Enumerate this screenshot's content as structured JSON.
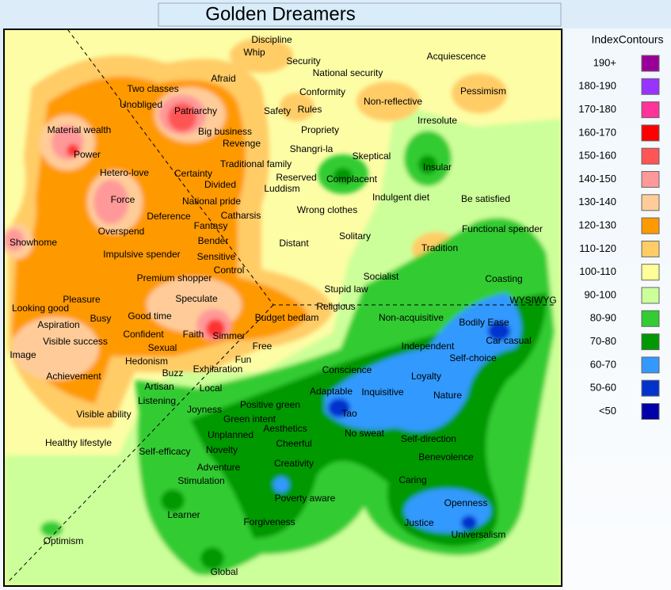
{
  "header": {
    "title": "Golden Dreamers"
  },
  "legend": {
    "title": "IndexContours",
    "items": [
      {
        "label": "190+",
        "color": "#990099"
      },
      {
        "label": "180-190",
        "color": "#9933ff"
      },
      {
        "label": "170-180",
        "color": "#ff3399"
      },
      {
        "label": "160-170",
        "color": "#ff0000"
      },
      {
        "label": "150-160",
        "color": "#ff5555"
      },
      {
        "label": "140-150",
        "color": "#ff9999"
      },
      {
        "label": "130-140",
        "color": "#ffcc99"
      },
      {
        "label": "120-130",
        "color": "#ff9900"
      },
      {
        "label": "110-120",
        "color": "#ffcc66"
      },
      {
        "label": "100-110",
        "color": "#ffff99"
      },
      {
        "label": "90-100",
        "color": "#ccff99"
      },
      {
        "label": "80-90",
        "color": "#33cc33"
      },
      {
        "label": "70-80",
        "color": "#009900"
      },
      {
        "label": "60-70",
        "color": "#3399ff"
      },
      {
        "label": "50-60",
        "color": "#0033cc"
      },
      {
        "label": "<50",
        "color": "#0000aa"
      }
    ]
  },
  "words": [
    "Discipline",
    "Whip",
    "Security",
    "National security",
    "Acquiescence",
    "Conformity",
    "Non-reflective",
    "Pessimism",
    "Afraid",
    "Two classes",
    "Unobliged",
    "Patriarchy",
    "Safety",
    "Rules",
    "Irresolute",
    "Material wealth",
    "Big business",
    "Propriety",
    "Revenge",
    "Power",
    "Shangri-la",
    "Traditional family",
    "Skeptical",
    "Insular",
    "Hetero-love",
    "Certainty",
    "Reserved",
    "Complacent",
    "Divided",
    "Luddism",
    "Indulgent diet",
    "Be satisfied",
    "Force",
    "National pride",
    "Wrong clothes",
    "Deference",
    "Catharsis",
    "Fantasy",
    "Functional spender",
    "Overspend",
    "Solitary",
    "Showhome",
    "Bender",
    "Distant",
    "Tradition",
    "Impulsive spender",
    "Sensitive",
    "Control",
    "Socialist",
    "Premium shopper",
    "Coasting",
    "Stupid law",
    "Pleasure",
    "Speculate",
    "WYSIWYG",
    "Looking good",
    "Religious",
    "Good time",
    "Busy",
    "Budget bedlam",
    "Non-acquisitive",
    "Bodily Ease",
    "Aspiration",
    "Confident",
    "Faith",
    "Simmer",
    "Car casual",
    "Visible success",
    "Free",
    "Independent",
    "Sexual",
    "Image",
    "Hedonism",
    "Fun",
    "Self-choice",
    "Conscience",
    "Buzz",
    "Exhilaration",
    "Loyalty",
    "Achievement",
    "Artisan",
    "Local",
    "Adaptable",
    "Inquisitive",
    "Nature",
    "Listening",
    "Positive green",
    "Joyness",
    "Tao",
    "Visible ability",
    "Green intent",
    "Aesthetics",
    "No sweat",
    "Unplanned",
    "Self-direction",
    "Healthy lifestyle",
    "Cheerful",
    "Self-efficacy",
    "Novelty",
    "Benevolence",
    "Creativity",
    "Adventure",
    "Stimulation",
    "Caring",
    "Poverty aware",
    "Openness",
    "Learner",
    "Forgiveness",
    "Justice",
    "Universalism",
    "Optimism",
    "Global"
  ]
}
